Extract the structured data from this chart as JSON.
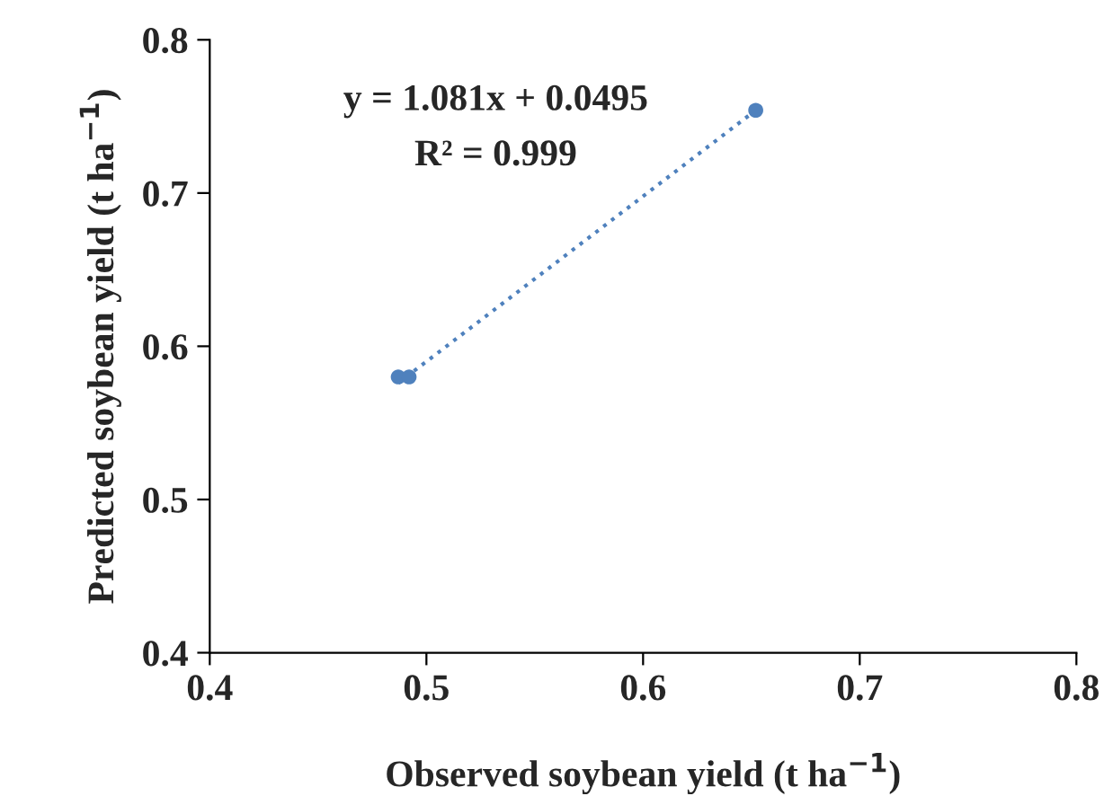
{
  "chart_data": {
    "type": "scatter",
    "xlabel": "Observed soybean yield (t ha$^{−1}$)",
    "ylabel": "Predicted soybean yield (t ha$^{−1}$)",
    "annotations": [
      "y = 1.081x + 0.0495",
      "R² = 0.999"
    ],
    "series": [
      {
        "color": "#4f81bd",
        "x": [
          0.487,
          0.492,
          0.652
        ],
        "values": [
          0.58,
          0.58,
          0.754
        ],
        "marker": "circle"
      },
      {
        "type": "line",
        "color": "#4f81bd",
        "x": [
          0.487,
          0.652
        ],
        "values": [
          0.576,
          0.754
        ],
        "line_style": "dotted",
        "marker": "none"
      }
    ],
    "xlim": [
      0.4,
      0.8
    ],
    "xticks": [
      0.4,
      0.5,
      0.6,
      0.7,
      0.8
    ],
    "ylim": [
      0.4,
      0.8
    ],
    "yticks": [
      0.4,
      0.5,
      0.6,
      0.7,
      0.8
    ],
    "grid": false,
    "legend": false
  }
}
